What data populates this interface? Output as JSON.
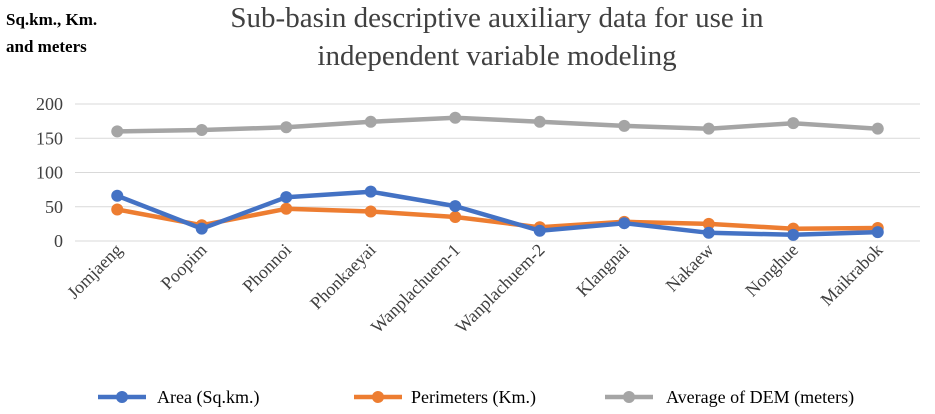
{
  "chart_data": {
    "type": "line",
    "title_lines": [
      "Sub-basin descriptive auxiliary data for use in",
      "independent variable modeling"
    ],
    "ylabel_lines": [
      "Sq.km., Km.",
      "and meters"
    ],
    "xlabel": "",
    "ylim": [
      0,
      200
    ],
    "yticks": [
      "0",
      "50",
      "100",
      "150",
      "200"
    ],
    "grid": true,
    "legend_position": "bottom",
    "categories": [
      "Jomjaeng",
      "Poopim",
      "Phonnoi",
      "Phonkaeyai",
      "Wanplachuem-1",
      "Wanplachuem-2",
      "Klangnai",
      "Nakaew",
      "Nonghue",
      "Maikrabok"
    ],
    "series": [
      {
        "name": "Area (Sq.km.)",
        "color": "#4472c4",
        "values": [
          66,
          18,
          64,
          72,
          51,
          15,
          26,
          12,
          9,
          13
        ]
      },
      {
        "name": "Perimeters (Km.)",
        "color": "#ed7d31",
        "values": [
          46,
          23,
          47,
          43,
          35,
          20,
          28,
          25,
          18,
          19
        ]
      },
      {
        "name": "Average of DEM (meters)",
        "color": "#a5a5a5",
        "values": [
          160,
          162,
          166,
          174,
          180,
          174,
          168,
          164,
          172,
          164
        ]
      }
    ]
  }
}
